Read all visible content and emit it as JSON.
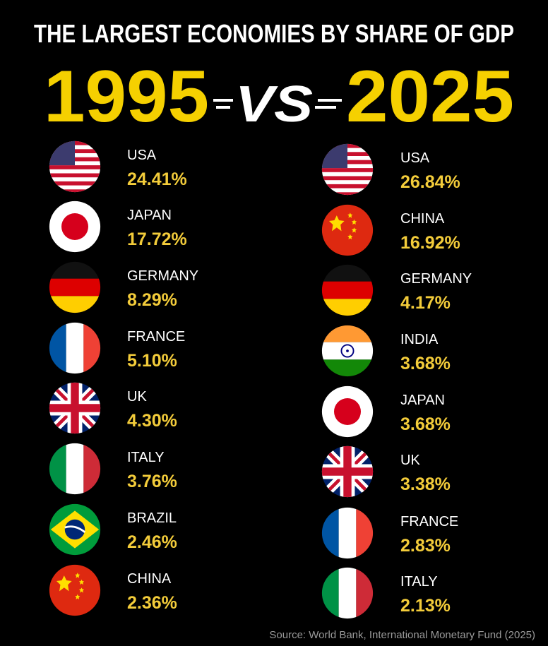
{
  "header": {
    "title": "THE LARGEST ECONOMIES BY SHARE OF GDP",
    "year_left": "1995",
    "vs": "VS",
    "year_right": "2025"
  },
  "left": {
    "items": [
      {
        "country": "USA",
        "share": "24.41%"
      },
      {
        "country": "JAPAN",
        "share": "17.72%"
      },
      {
        "country": "GERMANY",
        "share": "8.29%"
      },
      {
        "country": "FRANCE",
        "share": "5.10%"
      },
      {
        "country": "UK",
        "share": "4.30%"
      },
      {
        "country": "ITALY",
        "share": "3.76%"
      },
      {
        "country": "BRAZIL",
        "share": "2.46%"
      },
      {
        "country": "CHINA",
        "share": "2.36%"
      }
    ]
  },
  "right": {
    "items": [
      {
        "country": "USA",
        "share": "26.84%"
      },
      {
        "country": "CHINA",
        "share": "16.92%"
      },
      {
        "country": "GERMANY",
        "share": "4.17%"
      },
      {
        "country": "INDIA",
        "share": "3.68%"
      },
      {
        "country": "JAPAN",
        "share": "3.68%"
      },
      {
        "country": "UK",
        "share": "3.38%"
      },
      {
        "country": "FRANCE",
        "share": "2.83%"
      },
      {
        "country": "ITALY",
        "share": "2.13%"
      }
    ]
  },
  "source": "Source: World Bank, International Monetary Fund (2025)"
}
